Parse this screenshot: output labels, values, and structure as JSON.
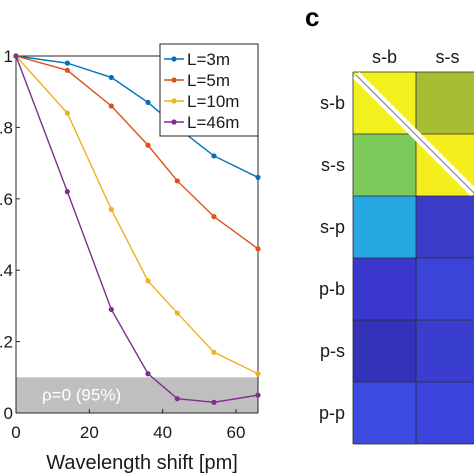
{
  "chart_data": [
    {
      "type": "line",
      "xlabel": "Wavelength shift [pm]",
      "xlim": [
        0,
        66
      ],
      "ylim": [
        0,
        1
      ],
      "x_ticks": [
        "0",
        "20",
        "40",
        "60"
      ],
      "x_tick_values": [
        0,
        20,
        40,
        60
      ],
      "y_ticks": [
        "0",
        ".2",
        ".4",
        ".6",
        ".8",
        "1"
      ],
      "y_tick_values": [
        0,
        0.2,
        0.4,
        0.6,
        0.8,
        1
      ],
      "grid": false,
      "legend": "top-right",
      "x": [
        0,
        14,
        26,
        36,
        44,
        54,
        66
      ],
      "series": [
        {
          "name": "L=3m",
          "color": "#0072BD",
          "values": [
            1.0,
            0.98,
            0.94,
            0.87,
            0.8,
            0.72,
            0.66
          ]
        },
        {
          "name": "L=5m",
          "color": "#D95319",
          "values": [
            1.0,
            0.96,
            0.86,
            0.75,
            0.65,
            0.55,
            0.46
          ]
        },
        {
          "name": "L=10m",
          "color": "#EDB120",
          "values": [
            1.0,
            0.84,
            0.57,
            0.37,
            0.28,
            0.17,
            0.11
          ]
        },
        {
          "name": "L=46m",
          "color": "#7E2F8E",
          "values": [
            1.0,
            0.62,
            0.29,
            0.11,
            0.04,
            0.03,
            0.05
          ]
        }
      ],
      "band": {
        "from": 0,
        "to": 0.1,
        "label": "ρ=0 (95%)",
        "color": "#bfbfbf"
      }
    },
    {
      "type": "heatmap",
      "panel_label": "c",
      "columns": [
        "s-b",
        "s-s"
      ],
      "rows": [
        "s-b",
        "s-s",
        "s-p",
        "p-b",
        "p-s",
        "p-p"
      ],
      "colors": [
        [
          "#f2f01e",
          "#a6be33"
        ],
        [
          "#7dc95a",
          "#f4ee1f"
        ],
        [
          "#26a7e1",
          "#3a3cc8"
        ],
        [
          "#3a38cc",
          "#3a44d8"
        ],
        [
          "#3432b8",
          "#3a3ece"
        ],
        [
          "#3b4ae0",
          "#3a44dc"
        ]
      ]
    }
  ]
}
